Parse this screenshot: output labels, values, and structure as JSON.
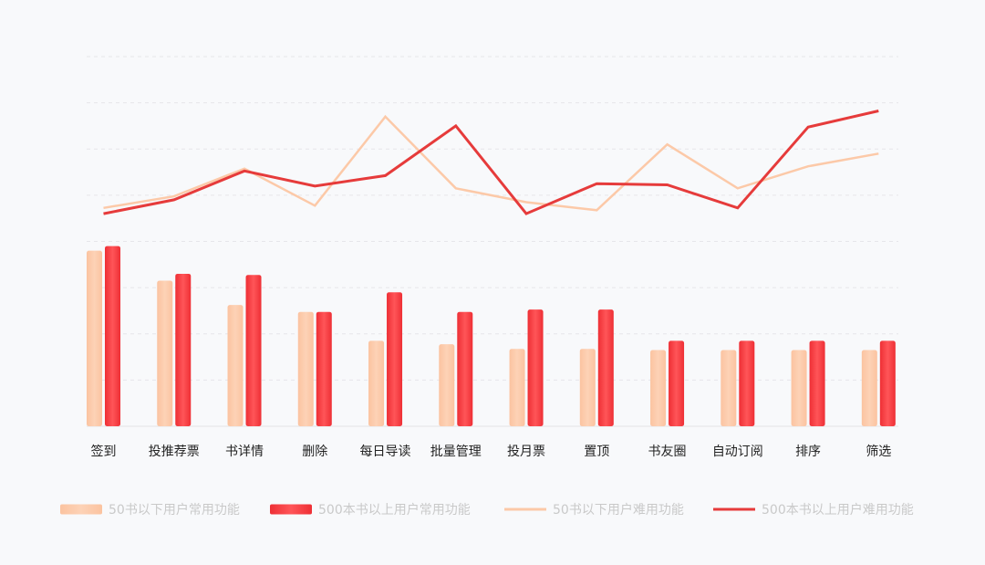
{
  "chart_data": {
    "type": "bar",
    "categories": [
      "签到",
      "投推荐票",
      "书详情",
      "删除",
      "每日导读",
      "批量管理",
      "投月票",
      "置顶",
      "书友圈",
      "自动订阅",
      "排序",
      "筛选"
    ],
    "series": [
      {
        "name": "50书以下用户常用功能",
        "kind": "bar",
        "color": "#fcc9a8",
        "values": [
          7.6,
          6.3,
          5.25,
          4.95,
          3.7,
          3.55,
          3.35,
          3.35,
          3.3,
          3.3,
          3.3,
          3.3
        ]
      },
      {
        "name": "500本书以上用户常用功能",
        "kind": "bar",
        "color": "#f2353a",
        "values": [
          7.8,
          6.6,
          6.55,
          4.95,
          5.8,
          4.95,
          5.05,
          5.05,
          3.7,
          3.7,
          3.7,
          3.7
        ]
      },
      {
        "name": "50书以下用户难用功能",
        "kind": "line",
        "color": "#fcc9a8",
        "values": [
          9.45,
          9.95,
          11.15,
          9.55,
          13.4,
          10.3,
          9.7,
          9.35,
          12.2,
          10.3,
          11.25,
          11.8
        ]
      },
      {
        "name": "500本书以上用户难用功能",
        "kind": "line",
        "color": "#e63b3b",
        "values": [
          9.2,
          9.8,
          11.05,
          10.4,
          10.85,
          13.0,
          9.2,
          10.5,
          10.45,
          9.45,
          12.95,
          13.65
        ]
      }
    ],
    "ylim": [
      0,
      16
    ],
    "grid": true,
    "legend_position": "bottom",
    "title": "",
    "xlabel": "",
    "ylabel": ""
  }
}
